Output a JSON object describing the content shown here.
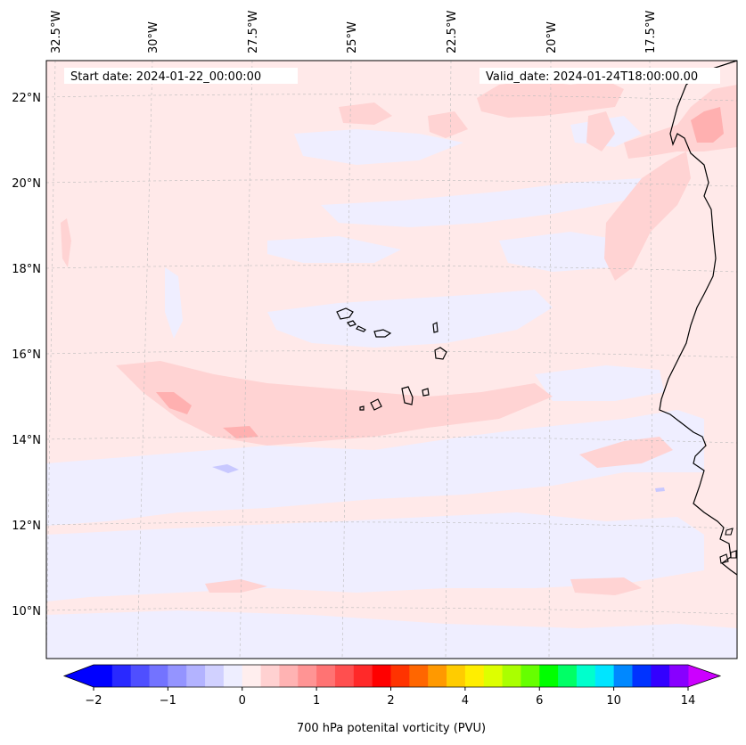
{
  "chart_data": {
    "type": "heatmap",
    "title": "",
    "start_date": "Start date: 2024-01-22_00:00:00",
    "valid_date": "Valid_date: 2024-01-24T18:00:00.00",
    "x_tick_labels": [
      "32.5°W",
      "30°W",
      "27.5°W",
      "25°W",
      "22.5°W",
      "20°W",
      "17.5°W"
    ],
    "x_tick_values": [
      -32.5,
      -30,
      -27.5,
      -25,
      -22.5,
      -20,
      -17.5
    ],
    "y_tick_labels": [
      "22°N",
      "20°N",
      "18°N",
      "16°N",
      "14°N",
      "12°N",
      "10°N"
    ],
    "y_tick_values": [
      22,
      20,
      18,
      16,
      14,
      12,
      10
    ],
    "lon_range": [
      -32.8,
      -15.5
    ],
    "lat_range": [
      8.8,
      22.8
    ],
    "grid": true,
    "colorbar": {
      "label": "700 hPa potenital vorticity (PVU)",
      "orientation": "horizontal",
      "extend": "both",
      "tick_labels": [
        "−2",
        "−1",
        "0",
        "1",
        "2",
        "4",
        "6",
        "10",
        "14"
      ],
      "tick_values": [
        -2,
        -1,
        0,
        1,
        2,
        4,
        6,
        10,
        14
      ],
      "colors": [
        "#0000ff",
        "#2929ff",
        "#4f4fff",
        "#7373ff",
        "#9494ff",
        "#b3b3ff",
        "#d1d1ff",
        "#eeeeff",
        "#ffeeee",
        "#ffd1d1",
        "#ffb3b3",
        "#ff9494",
        "#ff7373",
        "#ff4f4f",
        "#ff2929",
        "#ff0000",
        "#ff3300",
        "#ff6600",
        "#ff9900",
        "#ffcc00",
        "#ffee00",
        "#ddff00",
        "#aaff00",
        "#66ff00",
        "#00ff00",
        "#00ff66",
        "#00ffcc",
        "#00e5ff",
        "#0088ff",
        "#0033ff",
        "#3300ff",
        "#8800ff"
      ],
      "under_color": "#0000ff",
      "over_color": "#cc00ff"
    },
    "field_summary": "Mostly weak positive PV (~0–0.5 PVU, pale pink) with patches of weak negative PV (pale lavender) and a band of ~1 PVU along ~14.5°N; coastline of West Africa on the right and Cape Verde islands near center."
  }
}
